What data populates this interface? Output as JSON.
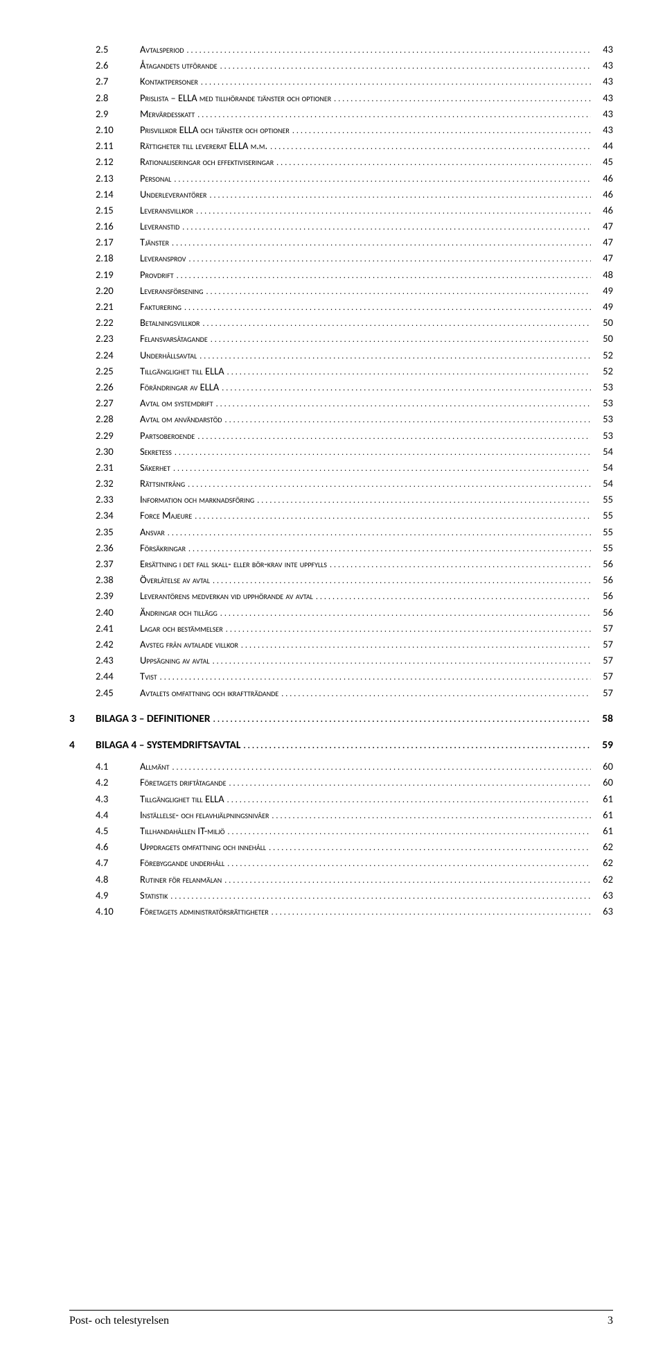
{
  "footer": {
    "left": "Post- och telestyrelsen",
    "page": "3"
  },
  "entries": [
    {
      "level": 2,
      "num": "2.5",
      "title": "Avtalsperiod",
      "page": "43"
    },
    {
      "level": 2,
      "num": "2.6",
      "title": "Åtagandets utförande",
      "page": "43"
    },
    {
      "level": 2,
      "num": "2.7",
      "title": "Kontaktpersoner",
      "page": "43"
    },
    {
      "level": 2,
      "num": "2.8",
      "title": "Prislista – ELLA med tillhörande tjänster och optioner",
      "page": "43"
    },
    {
      "level": 2,
      "num": "2.9",
      "title": "Mervärdesskatt",
      "page": "43"
    },
    {
      "level": 2,
      "num": "2.10",
      "title": "Prisvillkor ELLA och tjänster och optioner",
      "page": "43"
    },
    {
      "level": 2,
      "num": "2.11",
      "title": "Rättigheter till levererat ELLA m.m.",
      "page": "44"
    },
    {
      "level": 2,
      "num": "2.12",
      "title": "Rationaliseringar och effektiviseringar",
      "page": "45"
    },
    {
      "level": 2,
      "num": "2.13",
      "title": "Personal",
      "page": "46"
    },
    {
      "level": 2,
      "num": "2.14",
      "title": "Underleverantörer",
      "page": "46"
    },
    {
      "level": 2,
      "num": "2.15",
      "title": "Leveransvillkor",
      "page": "46"
    },
    {
      "level": 2,
      "num": "2.16",
      "title": "Leveranstid",
      "page": "47"
    },
    {
      "level": 2,
      "num": "2.17",
      "title": "Tjänster",
      "page": "47"
    },
    {
      "level": 2,
      "num": "2.18",
      "title": "Leveransprov",
      "page": "47"
    },
    {
      "level": 2,
      "num": "2.19",
      "title": "Provdrift",
      "page": "48"
    },
    {
      "level": 2,
      "num": "2.20",
      "title": "Leveransförsening",
      "page": "49"
    },
    {
      "level": 2,
      "num": "2.21",
      "title": "Fakturering",
      "page": "49"
    },
    {
      "level": 2,
      "num": "2.22",
      "title": "Betalningsvillkor",
      "page": "50"
    },
    {
      "level": 2,
      "num": "2.23",
      "title": "Felansvarsåtagande",
      "page": "50"
    },
    {
      "level": 2,
      "num": "2.24",
      "title": "Underhållsavtal",
      "page": "52"
    },
    {
      "level": 2,
      "num": "2.25",
      "title": "Tillgänglighet till ELLA",
      "page": "52"
    },
    {
      "level": 2,
      "num": "2.26",
      "title": "Förändringar av ELLA",
      "page": "53"
    },
    {
      "level": 2,
      "num": "2.27",
      "title": "Avtal om systemdrift",
      "page": "53"
    },
    {
      "level": 2,
      "num": "2.28",
      "title": "Avtal om användarstöd",
      "page": "53"
    },
    {
      "level": 2,
      "num": "2.29",
      "title": "Partsoberoende",
      "page": "53"
    },
    {
      "level": 2,
      "num": "2.30",
      "title": "Sekretess",
      "page": "54"
    },
    {
      "level": 2,
      "num": "2.31",
      "title": "Säkerhet",
      "page": "54"
    },
    {
      "level": 2,
      "num": "2.32",
      "title": "Rättsintrång",
      "page": "54"
    },
    {
      "level": 2,
      "num": "2.33",
      "title": "Information och marknadsföring",
      "page": "55"
    },
    {
      "level": 2,
      "num": "2.34",
      "title": "Force Majeure",
      "page": "55"
    },
    {
      "level": 2,
      "num": "2.35",
      "title": "Ansvar",
      "page": "55"
    },
    {
      "level": 2,
      "num": "2.36",
      "title": "Försäkringar",
      "page": "55"
    },
    {
      "level": 2,
      "num": "2.37",
      "title": "Ersättning i det fall skall- eller bör-krav inte uppfylls",
      "page": "56"
    },
    {
      "level": 2,
      "num": "2.38",
      "title": "Överlåtelse av avtal",
      "page": "56"
    },
    {
      "level": 2,
      "num": "2.39",
      "title": "Leverantörens medverkan vid upphörande av avtal",
      "page": "56"
    },
    {
      "level": 2,
      "num": "2.40",
      "title": "Ändringar och tillägg",
      "page": "56"
    },
    {
      "level": 2,
      "num": "2.41",
      "title": "Lagar och bestämmelser",
      "page": "57"
    },
    {
      "level": 2,
      "num": "2.42",
      "title": "Avsteg från avtalade villkor",
      "page": "57"
    },
    {
      "level": 2,
      "num": "2.43",
      "title": "Uppsägning av avtal",
      "page": "57"
    },
    {
      "level": 2,
      "num": "2.44",
      "title": "Tvist",
      "page": "57"
    },
    {
      "level": 2,
      "num": "2.45",
      "title": "Avtalets omfattning och ikraftträdande",
      "page": "57"
    },
    {
      "level": 1,
      "num": "3",
      "title": "BILAGA 3 – DEFINITIONER",
      "page": "58"
    },
    {
      "level": 1,
      "num": "4",
      "title": "BILAGA 4 – SYSTEMDRIFTSAVTAL",
      "page": "59"
    },
    {
      "level": 2,
      "num": "4.1",
      "title": "Allmänt",
      "page": "60"
    },
    {
      "level": 2,
      "num": "4.2",
      "title": "Företagets driftåtagande",
      "page": "60"
    },
    {
      "level": 2,
      "num": "4.3",
      "title": "Tillgänglighet till ELLA",
      "page": "61"
    },
    {
      "level": 2,
      "num": "4.4",
      "title": "Inställelse- och felavhjälpningsnivåer",
      "page": "61"
    },
    {
      "level": 2,
      "num": "4.5",
      "title": "Tillhandahållen IT-miljö",
      "page": "61"
    },
    {
      "level": 2,
      "num": "4.6",
      "title": "Uppdragets omfattning och innehåll",
      "page": "62"
    },
    {
      "level": 2,
      "num": "4.7",
      "title": "Förebyggande underhåll",
      "page": "62"
    },
    {
      "level": 2,
      "num": "4.8",
      "title": "Rutiner för felanmälan",
      "page": "62"
    },
    {
      "level": 2,
      "num": "4.9",
      "title": "Statistik",
      "page": "63"
    },
    {
      "level": 2,
      "num": "4.10",
      "title": "Företagets administratörsrättigheter",
      "page": "63"
    }
  ]
}
